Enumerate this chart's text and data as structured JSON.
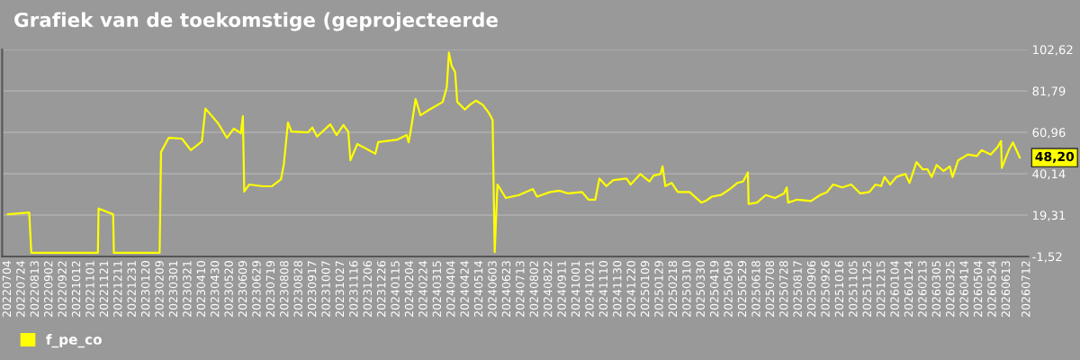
{
  "chart_data": {
    "type": "line",
    "title": "Grafiek van de toekomstige (geprojecteerde",
    "x": [
      "2022-07-04",
      "2022-08-04",
      "2022-08-07",
      "2022-11-11",
      "2022-11-12",
      "2022-12-03",
      "2022-12-04",
      "2023-02-08",
      "2023-02-10",
      "2023-02-21",
      "2023-03-12",
      "2023-03-25",
      "2023-04-10",
      "2023-04-15",
      "2023-05-03",
      "2023-05-16",
      "2023-05-26",
      "2023-06-05",
      "2023-06-08",
      "2023-06-10",
      "2023-06-17",
      "2023-07-07",
      "2023-07-20",
      "2023-08-02",
      "2023-08-06",
      "2023-08-12",
      "2023-08-17",
      "2023-09-10",
      "2023-09-16",
      "2023-09-23",
      "2023-10-12",
      "2023-10-21",
      "2023-10-31",
      "2023-11-07",
      "2023-11-10",
      "2023-11-20",
      "2023-11-26",
      "2023-12-16",
      "2023-12-20",
      "2024-01-17",
      "2024-01-30",
      "2024-02-02",
      "2024-02-06",
      "2024-02-12",
      "2024-02-19",
      "2024-03-03",
      "2024-03-22",
      "2024-03-28",
      "2024-03-31",
      "2024-04-04",
      "2024-04-09",
      "2024-04-12",
      "2024-04-23",
      "2024-04-30",
      "2024-05-09",
      "2024-05-19",
      "2024-05-27",
      "2024-06-02",
      "2024-06-05",
      "2024-06-09",
      "2024-06-21",
      "2024-07-10",
      "2024-07-30",
      "2024-08-05",
      "2024-08-24",
      "2024-09-06",
      "2024-09-19",
      "2024-10-09",
      "2024-10-18",
      "2024-10-28",
      "2024-11-03",
      "2024-11-13",
      "2024-11-23",
      "2024-12-12",
      "2024-12-18",
      "2025-01-01",
      "2025-01-14",
      "2025-01-20",
      "2025-01-30",
      "2025-02-02",
      "2025-02-06",
      "2025-02-15",
      "2025-02-24",
      "2025-03-13",
      "2025-03-30",
      "2025-04-05",
      "2025-04-14",
      "2025-04-27",
      "2025-05-10",
      "2025-05-21",
      "2025-05-29",
      "2025-06-05",
      "2025-06-06",
      "2025-06-18",
      "2025-07-01",
      "2025-07-14",
      "2025-07-27",
      "2025-07-31",
      "2025-08-02",
      "2025-08-15",
      "2025-09-04",
      "2025-09-17",
      "2025-09-27",
      "2025-10-06",
      "2025-10-19",
      "2025-11-01",
      "2025-11-14",
      "2025-11-27",
      "2025-12-06",
      "2025-12-14",
      "2025-12-19",
      "2025-12-27",
      "2026-01-05",
      "2026-01-18",
      "2026-01-24",
      "2026-02-03",
      "2026-02-12",
      "2026-02-19",
      "2026-02-25",
      "2026-03-04",
      "2026-03-14",
      "2026-03-23",
      "2026-03-27",
      "2026-04-04",
      "2026-04-18",
      "2026-05-01",
      "2026-05-08",
      "2026-05-21",
      "2026-05-31",
      "2026-06-05",
      "2026-06-06",
      "2026-06-16",
      "2026-06-22",
      "2026-06-26",
      "2026-07-02"
    ],
    "series": [
      {
        "name": "f_pe_co",
        "color": "#ffff00",
        "values": [
          19.7,
          20.6,
          0.3,
          0.3,
          22.6,
          19.7,
          0.3,
          0.3,
          51,
          58.2,
          57.8,
          52,
          56.4,
          72.9,
          65.6,
          58.2,
          62.8,
          60.5,
          69.1,
          31.1,
          34.7,
          33.8,
          33.9,
          37.4,
          44.8,
          65.9,
          61.4,
          60.9,
          63.4,
          58.8,
          65,
          59.6,
          64.6,
          61.1,
          46.9,
          55.1,
          53.9,
          50.2,
          56,
          57.3,
          59.6,
          55.9,
          64.1,
          77.7,
          69.5,
          72.4,
          76.2,
          83.7,
          101.1,
          94.3,
          91.3,
          76.3,
          72.4,
          74.7,
          76.9,
          74.7,
          71,
          67.2,
          0.7,
          34.7,
          27.9,
          29.4,
          32.4,
          28.6,
          30.9,
          31.6,
          30.2,
          30.9,
          27.1,
          27.1,
          37.7,
          33.9,
          36.9,
          37.7,
          34.7,
          40,
          36.2,
          39.2,
          40,
          43.8,
          33.9,
          35.5,
          30.9,
          30.9,
          25.6,
          26.4,
          28.6,
          29.4,
          32.4,
          35.5,
          36.2,
          40.7,
          24.9,
          25.6,
          29.4,
          27.9,
          30.2,
          33.2,
          25.6,
          27.1,
          26.4,
          29.4,
          30.9,
          34.7,
          33.2,
          34.7,
          30.2,
          30.9,
          34.7,
          33.9,
          38.5,
          34.7,
          38.5,
          40,
          35.5,
          46,
          42.3,
          42.3,
          38.5,
          44.5,
          41.5,
          43.8,
          38.5,
          46.8,
          49.8,
          49,
          52,
          49.8,
          53.6,
          56.6,
          43,
          52,
          55.9,
          52.8,
          48.2
        ]
      }
    ],
    "annotations": [
      {
        "text": "48,20",
        "x": "2026-07-02",
        "y": 48.2
      }
    ],
    "xlim": [
      "2022-06-26",
      "2026-07-14"
    ],
    "xticks": [
      {
        "value": "2022-07-04",
        "label": "20220704"
      },
      {
        "value": "2022-07-24",
        "label": "20220724"
      },
      {
        "value": "2022-08-13",
        "label": "20220813"
      },
      {
        "value": "2022-09-02",
        "label": "20220902"
      },
      {
        "value": "2022-09-22",
        "label": "20220922"
      },
      {
        "value": "2022-10-12",
        "label": "20221012"
      },
      {
        "value": "2022-11-01",
        "label": "20221101"
      },
      {
        "value": "2022-11-21",
        "label": "20221121"
      },
      {
        "value": "2022-12-11",
        "label": "20221211"
      },
      {
        "value": "2022-12-31",
        "label": "20221231"
      },
      {
        "value": "2023-01-20",
        "label": "20230120"
      },
      {
        "value": "2023-02-09",
        "label": "20230209"
      },
      {
        "value": "2023-03-01",
        "label": "20230301"
      },
      {
        "value": "2023-03-21",
        "label": "20230321"
      },
      {
        "value": "2023-04-10",
        "label": "20230410"
      },
      {
        "value": "2023-04-30",
        "label": "20230430"
      },
      {
        "value": "2023-05-20",
        "label": "20230520"
      },
      {
        "value": "2023-06-09",
        "label": "20230609"
      },
      {
        "value": "2023-06-29",
        "label": "20230629"
      },
      {
        "value": "2023-07-19",
        "label": "20230719"
      },
      {
        "value": "2023-08-08",
        "label": "20230808"
      },
      {
        "value": "2023-08-28",
        "label": "20230828"
      },
      {
        "value": "2023-09-17",
        "label": "20230917"
      },
      {
        "value": "2023-10-07",
        "label": "20231007"
      },
      {
        "value": "2023-10-27",
        "label": "20231027"
      },
      {
        "value": "2023-11-16",
        "label": "20231116"
      },
      {
        "value": "2023-12-06",
        "label": "20231206"
      },
      {
        "value": "2023-12-26",
        "label": "20231226"
      },
      {
        "value": "2024-01-15",
        "label": "20240115"
      },
      {
        "value": "2024-02-04",
        "label": "20240204"
      },
      {
        "value": "2024-02-24",
        "label": "20240224"
      },
      {
        "value": "2024-03-15",
        "label": "20240315"
      },
      {
        "value": "2024-04-04",
        "label": "20240404"
      },
      {
        "value": "2024-04-24",
        "label": "20240424"
      },
      {
        "value": "2024-05-14",
        "label": "20240514"
      },
      {
        "value": "2024-06-03",
        "label": "20240603"
      },
      {
        "value": "2024-06-23",
        "label": "20240623"
      },
      {
        "value": "2024-07-13",
        "label": "20240713"
      },
      {
        "value": "2024-08-02",
        "label": "20240802"
      },
      {
        "value": "2024-08-22",
        "label": "20240822"
      },
      {
        "value": "2024-09-11",
        "label": "20240911"
      },
      {
        "value": "2024-10-01",
        "label": "20241001"
      },
      {
        "value": "2024-10-21",
        "label": "20241021"
      },
      {
        "value": "2024-11-10",
        "label": "20241110"
      },
      {
        "value": "2024-11-30",
        "label": "20241130"
      },
      {
        "value": "2024-12-20",
        "label": "20241220"
      },
      {
        "value": "2025-01-09",
        "label": "20250109"
      },
      {
        "value": "2025-01-29",
        "label": "20250129"
      },
      {
        "value": "2025-02-18",
        "label": "20250218"
      },
      {
        "value": "2025-03-10",
        "label": "20250310"
      },
      {
        "value": "2025-03-30",
        "label": "20250330"
      },
      {
        "value": "2025-04-19",
        "label": "20250419"
      },
      {
        "value": "2025-05-09",
        "label": "20250509"
      },
      {
        "value": "2025-05-29",
        "label": "20250529"
      },
      {
        "value": "2025-06-18",
        "label": "20250618"
      },
      {
        "value": "2025-07-08",
        "label": "20250708"
      },
      {
        "value": "2025-07-28",
        "label": "20250728"
      },
      {
        "value": "2025-08-17",
        "label": "20250817"
      },
      {
        "value": "2025-09-06",
        "label": "20250906"
      },
      {
        "value": "2025-09-26",
        "label": "20250926"
      },
      {
        "value": "2025-10-16",
        "label": "20251016"
      },
      {
        "value": "2025-11-05",
        "label": "20251105"
      },
      {
        "value": "2025-11-25",
        "label": "20251125"
      },
      {
        "value": "2025-12-15",
        "label": "20251215"
      },
      {
        "value": "2026-01-04",
        "label": "20260104"
      },
      {
        "value": "2026-01-24",
        "label": "20260124"
      },
      {
        "value": "2026-02-13",
        "label": "20260213"
      },
      {
        "value": "2026-03-05",
        "label": "20260305"
      },
      {
        "value": "2026-03-25",
        "label": "20260325"
      },
      {
        "value": "2026-04-14",
        "label": "20260414"
      },
      {
        "value": "2026-05-04",
        "label": "20260504"
      },
      {
        "value": "2026-05-24",
        "label": "20260524"
      },
      {
        "value": "2026-06-13",
        "label": "20260613"
      },
      {
        "value": "2026-07-12",
        "label": "20260712"
      }
    ],
    "ylim": [
      -1.52,
      102.62
    ],
    "yticks": [
      {
        "value": -1.52,
        "label": "-1,52"
      },
      {
        "value": 19.31,
        "label": "19,31"
      },
      {
        "value": 40.14,
        "label": "40,14"
      },
      {
        "value": 60.96,
        "label": "60,96"
      },
      {
        "value": 81.79,
        "label": "81,79"
      },
      {
        "value": 102.62,
        "label": "102,62"
      }
    ],
    "grid": "y",
    "legend": "bottom",
    "marker": "none",
    "line_style": "solid"
  }
}
